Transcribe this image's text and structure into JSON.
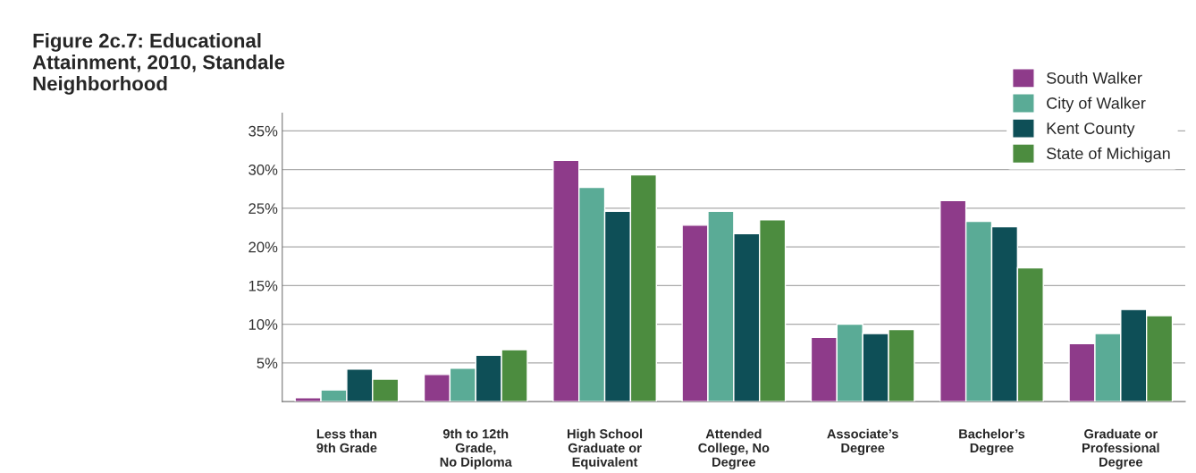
{
  "chart_data": {
    "type": "bar",
    "title": "Figure 2c.7: Educational Attainment, 2010, Standale Neighborhood",
    "categories": [
      "Less than\n9th Grade",
      "9th to 12th\nGrade,\nNo Diploma",
      "High School\nGraduate or\nEquivalent",
      "Attended\nCollege, No\nDegree",
      "Associate’s\nDegree",
      "Bachelor’s\nDegree",
      "Graduate or\nProfessional\nDegree"
    ],
    "series": [
      {
        "name": "South Walker",
        "color": "#8e3b8a",
        "values": [
          0.5,
          3.5,
          31.2,
          22.8,
          8.3,
          26.0,
          7.5
        ]
      },
      {
        "name": "City of Walker",
        "color": "#5aab96",
        "values": [
          1.5,
          4.3,
          27.7,
          24.6,
          10.0,
          23.3,
          8.8
        ]
      },
      {
        "name": "Kent County",
        "color": "#0e4f57",
        "values": [
          4.2,
          6.0,
          24.6,
          21.7,
          8.8,
          22.6,
          11.9
        ]
      },
      {
        "name": "State of Michigan",
        "color": "#4c8c3f",
        "values": [
          2.9,
          6.7,
          29.3,
          23.5,
          9.3,
          17.3,
          11.1
        ]
      }
    ],
    "ylim": [
      0,
      37.3
    ],
    "yticks": [
      {
        "value": 5,
        "label": "5%"
      },
      {
        "value": 10,
        "label": "10%"
      },
      {
        "value": 15,
        "label": "15%"
      },
      {
        "value": 20,
        "label": "20%"
      },
      {
        "value": 25,
        "label": "25%"
      },
      {
        "value": 30,
        "label": "30%"
      },
      {
        "value": 35,
        "label": "35%"
      }
    ],
    "grid": "y",
    "legend": "top right"
  }
}
